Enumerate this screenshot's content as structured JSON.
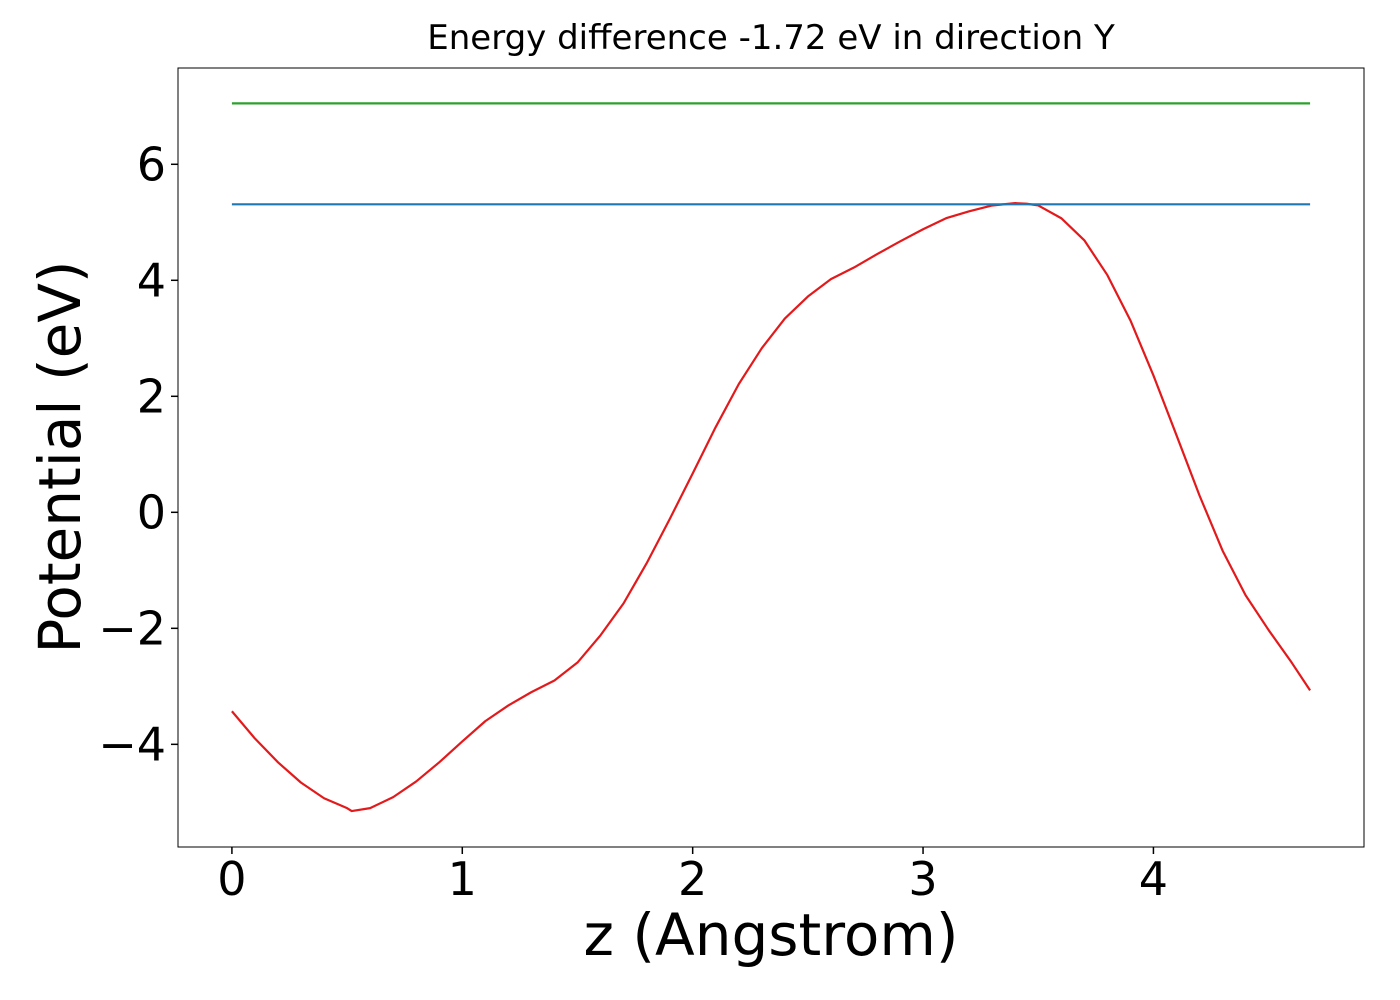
{
  "chart_data": {
    "type": "line",
    "title": "Energy difference -1.72 eV in direction Y",
    "xlabel": "z (Angstrom)",
    "ylabel": "Potential (eV)",
    "xlim": [
      -0.234,
      4.914
    ],
    "ylim": [
      -5.77,
      7.66
    ],
    "xticks": [
      0,
      1,
      2,
      3,
      4
    ],
    "yticks": [
      {
        "value": -4,
        "label": "−4"
      },
      {
        "value": -2,
        "label": "−2"
      },
      0,
      2,
      4,
      6
    ],
    "series": [
      {
        "color": "#e31a1c",
        "x": [
          0,
          0.1,
          0.2,
          0.3,
          0.4,
          0.5,
          0.52,
          0.6,
          0.7,
          0.8,
          0.9,
          1.0,
          1.1,
          1.2,
          1.3,
          1.4,
          1.5,
          1.6,
          1.7,
          1.8,
          1.9,
          2.0,
          2.1,
          2.2,
          2.3,
          2.4,
          2.5,
          2.6,
          2.7,
          2.8,
          2.9,
          3.0,
          3.1,
          3.2,
          3.3,
          3.4,
          3.45,
          3.5,
          3.6,
          3.7,
          3.8,
          3.9,
          4.0,
          4.1,
          4.2,
          4.3,
          4.4,
          4.5,
          4.6,
          4.68
        ],
        "values": [
          -3.43,
          -3.9,
          -4.31,
          -4.66,
          -4.93,
          -5.1,
          -5.15,
          -5.1,
          -4.91,
          -4.64,
          -4.31,
          -3.95,
          -3.6,
          -3.33,
          -3.1,
          -2.9,
          -2.59,
          -2.12,
          -1.57,
          -0.88,
          -0.12,
          0.67,
          1.47,
          2.21,
          2.83,
          3.34,
          3.72,
          4.02,
          4.22,
          4.45,
          4.67,
          4.88,
          5.07,
          5.19,
          5.29,
          5.33,
          5.32,
          5.29,
          5.07,
          4.69,
          4.09,
          3.31,
          2.36,
          1.33,
          0.29,
          -0.66,
          -1.43,
          -2.03,
          -2.59,
          -3.07
        ]
      },
      {
        "color": "#1f77b4",
        "x": [
          0,
          4.68
        ],
        "values": [
          5.31,
          5.31
        ]
      },
      {
        "color": "#2ca02c",
        "x": [
          0,
          4.68
        ],
        "values": [
          7.05,
          7.05
        ]
      }
    ]
  }
}
